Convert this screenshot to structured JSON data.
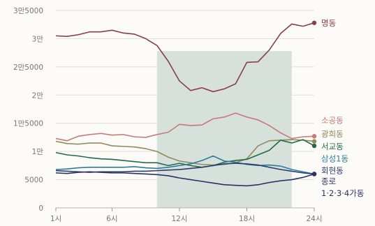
{
  "chart_data": {
    "type": "line",
    "x": [
      1,
      2,
      3,
      4,
      5,
      6,
      7,
      8,
      9,
      10,
      11,
      12,
      13,
      14,
      15,
      16,
      17,
      18,
      19,
      20,
      21,
      22,
      23,
      24
    ],
    "x_tick_labels": [
      "1시",
      "6시",
      "12시",
      "18시",
      "24시"
    ],
    "x_tick_positions": [
      1,
      6,
      12,
      18,
      24
    ],
    "xlim": [
      1,
      24
    ],
    "ylim": [
      0,
      35000
    ],
    "y_tick_values": [
      0,
      5000,
      10000,
      15000,
      20000,
      25000,
      30000,
      35000
    ],
    "y_tick_labels": [
      "0",
      "5000",
      "1만",
      "1만5000",
      "2만",
      "2만5000",
      "3만",
      "3만5000"
    ],
    "grid": true,
    "shaded_region": {
      "x_start": 10,
      "x_end": 22,
      "y_max": 27800,
      "color": "#cbd8d2"
    },
    "series": [
      {
        "name": "명동",
        "color": "#8a3e43",
        "values": [
          30500,
          30400,
          30700,
          31200,
          31200,
          31500,
          31000,
          30800,
          30000,
          28800,
          26000,
          22500,
          20800,
          21300,
          20600,
          21100,
          22000,
          25800,
          25900,
          28000,
          30900,
          32600,
          32200,
          32800
        ]
      },
      {
        "name": "소공동",
        "color": "#c47a78",
        "values": [
          12300,
          11900,
          12700,
          13000,
          13200,
          12900,
          13000,
          12600,
          12500,
          13000,
          13400,
          14800,
          14600,
          14700,
          15800,
          16100,
          16800,
          16100,
          15600,
          14600,
          13300,
          12300,
          12600,
          12700
        ]
      },
      {
        "name": "광희동",
        "color": "#8f8d57",
        "values": [
          11800,
          11400,
          11300,
          11500,
          11500,
          11000,
          10900,
          10800,
          10500,
          10000,
          9000,
          8300,
          8000,
          7700,
          7600,
          7700,
          8000,
          8700,
          11000,
          11900,
          12000,
          12100,
          12000,
          11800
        ]
      },
      {
        "name": "서교동",
        "color": "#236a4d",
        "values": [
          9800,
          9400,
          9200,
          8900,
          8700,
          8600,
          8400,
          8200,
          8000,
          8000,
          7500,
          7900,
          7500,
          7200,
          7500,
          8100,
          8400,
          8600,
          9400,
          10200,
          12000,
          11500,
          12100,
          11000
        ]
      },
      {
        "name": "삼성1동",
        "color": "#2c7d9b",
        "values": [
          6800,
          6900,
          7100,
          7200,
          7200,
          7200,
          7200,
          7300,
          7100,
          7000,
          7200,
          7500,
          7800,
          8400,
          9200,
          8300,
          8100,
          7700,
          7500,
          7600,
          7400,
          6800,
          6400,
          6000
        ]
      },
      {
        "name": "회현동",
        "color": "#2b3c6e",
        "values": [
          6600,
          6500,
          6400,
          6300,
          6400,
          6400,
          6400,
          6500,
          6500,
          6600,
          6700,
          6800,
          7000,
          7200,
          7500,
          7800,
          7900,
          7800,
          7600,
          7200,
          6800,
          6500,
          6200,
          6000
        ]
      },
      {
        "name": "종로\n1·2·3·4가동",
        "color": "#2a3163",
        "values": [
          6200,
          6100,
          6300,
          6400,
          6300,
          6200,
          6200,
          6100,
          6000,
          5900,
          5700,
          5300,
          5000,
          4700,
          4400,
          4100,
          4000,
          3900,
          4100,
          4500,
          4800,
          5000,
          5400,
          6000
        ]
      }
    ],
    "label_y": [
      32800,
      15500,
      13100,
      10900,
      8700,
      6600,
      4700
    ]
  }
}
